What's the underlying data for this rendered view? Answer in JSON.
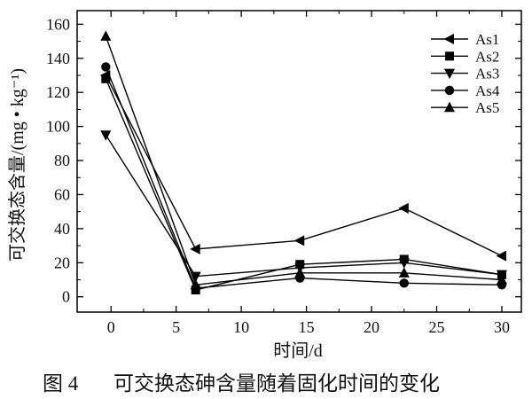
{
  "chart_data": {
    "type": "line",
    "x": [
      -0.4,
      6.5,
      14.5,
      22.5,
      30
    ],
    "series": [
      {
        "name": "As1",
        "marker": "left-triangle",
        "values": [
          130,
          28,
          33,
          52,
          24
        ]
      },
      {
        "name": "As2",
        "marker": "square",
        "values": [
          128,
          4,
          19,
          22,
          13
        ]
      },
      {
        "name": "As3",
        "marker": "down-triangle",
        "values": [
          95,
          12,
          17,
          20,
          13
        ]
      },
      {
        "name": "As4",
        "marker": "circle",
        "values": [
          135,
          5,
          11,
          8,
          7
        ]
      },
      {
        "name": "As5",
        "marker": "up-triangle",
        "values": [
          153,
          7,
          14,
          14,
          10
        ]
      }
    ],
    "xlabel": "时间/d",
    "ylabel": "可交换态含量/(mg • kg⁻¹)",
    "xticks": [
      0,
      5,
      10,
      15,
      20,
      25,
      30
    ],
    "yticks": [
      0,
      20,
      40,
      60,
      80,
      100,
      120,
      140,
      160
    ],
    "xlim": [
      -2.6,
      31.5
    ],
    "ylim": [
      -9,
      168
    ],
    "grid": false,
    "legend": "top-right",
    "line_color": "#000000"
  },
  "caption": {
    "figure_label": "图 4",
    "text": "可交换态砷含量随着固化时间的变化"
  }
}
